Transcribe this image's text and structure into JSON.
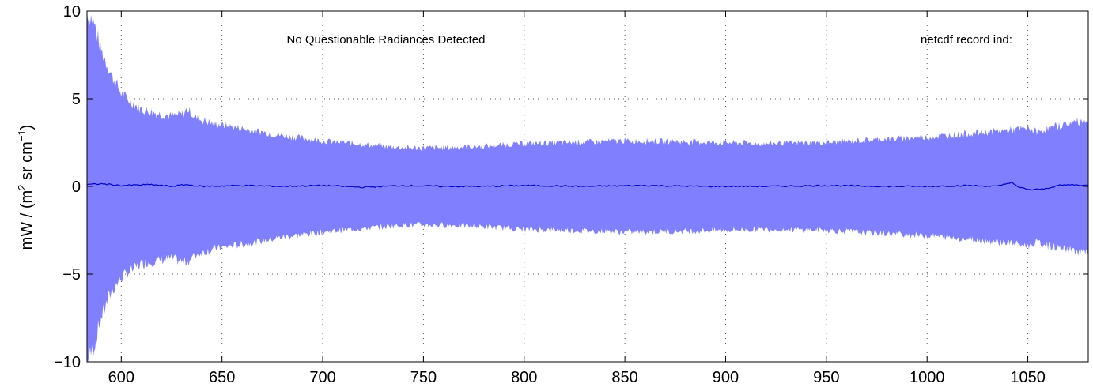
{
  "chart_data": {
    "type": "area",
    "xlim": [
      583,
      1080
    ],
    "ylim": [
      -10,
      10
    ],
    "x_ticks": [
      600,
      650,
      700,
      750,
      800,
      850,
      900,
      950,
      1000,
      1050
    ],
    "y_ticks": [
      -10,
      -5,
      0,
      5,
      10
    ],
    "x_tick_labels": [
      "600",
      "650",
      "700",
      "750",
      "800",
      "850",
      "900",
      "950",
      "1000",
      "1050"
    ],
    "y_tick_labels": [
      "−10",
      "−5",
      "0",
      "5",
      "10"
    ],
    "ylabel": {
      "base": "mW / (m",
      "sup1": "2",
      "mid": " sr cm",
      "sup2": "−1",
      "end": ")"
    },
    "grid": true,
    "annotations": {
      "status": "No Questionable Radiances Detected",
      "record": "netcdf record ind:"
    },
    "series": [
      {
        "role": "band",
        "color": "#8080ff",
        "x": [
          583,
          586,
          590,
          595,
          600,
          605,
          610,
          620,
          625,
          630,
          633,
          637,
          645,
          655,
          665,
          680,
          700,
          720,
          740,
          750,
          760,
          780,
          800,
          820,
          850,
          880,
          900,
          920,
          950,
          980,
          1000,
          1020,
          1040,
          1050,
          1055,
          1060,
          1070,
          1080
        ],
        "upper": [
          10,
          9.5,
          7.8,
          6.4,
          5.3,
          4.8,
          4.4,
          4.1,
          4.0,
          4.1,
          4.4,
          3.9,
          3.6,
          3.4,
          3.2,
          2.9,
          2.6,
          2.4,
          2.2,
          2.2,
          2.2,
          2.3,
          2.45,
          2.5,
          2.6,
          2.55,
          2.5,
          2.45,
          2.5,
          2.7,
          2.8,
          3.0,
          3.2,
          3.3,
          3.1,
          3.3,
          3.6,
          3.8
        ],
        "lower": [
          -10,
          -9.3,
          -7.5,
          -6.0,
          -5.2,
          -4.8,
          -4.4,
          -4.2,
          -4.1,
          -4.3,
          -4.3,
          -3.9,
          -3.6,
          -3.4,
          -3.2,
          -2.9,
          -2.6,
          -2.4,
          -2.2,
          -2.2,
          -2.2,
          -2.3,
          -2.45,
          -2.5,
          -2.6,
          -2.55,
          -2.5,
          -2.45,
          -2.5,
          -2.7,
          -2.8,
          -3.0,
          -3.2,
          -3.4,
          -3.2,
          -3.4,
          -3.6,
          -3.8
        ]
      },
      {
        "role": "mean",
        "color": "#0000cc",
        "x": [
          583,
          590,
          600,
          615,
          625,
          632,
          640,
          660,
          680,
          700,
          720,
          740,
          760,
          780,
          800,
          830,
          860,
          890,
          920,
          950,
          980,
          1000,
          1020,
          1035,
          1042,
          1045,
          1052,
          1058,
          1065,
          1072,
          1080
        ],
        "y": [
          0.1,
          0.15,
          0.05,
          0.1,
          0.0,
          0.1,
          0.0,
          0.05,
          0.0,
          0.05,
          -0.05,
          0.05,
          0.0,
          0.0,
          0.05,
          0.0,
          0.05,
          0.0,
          0.0,
          0.05,
          0.0,
          0.0,
          0.05,
          0.0,
          0.25,
          -0.05,
          -0.2,
          -0.15,
          0.05,
          0.1,
          0.05
        ]
      }
    ]
  }
}
